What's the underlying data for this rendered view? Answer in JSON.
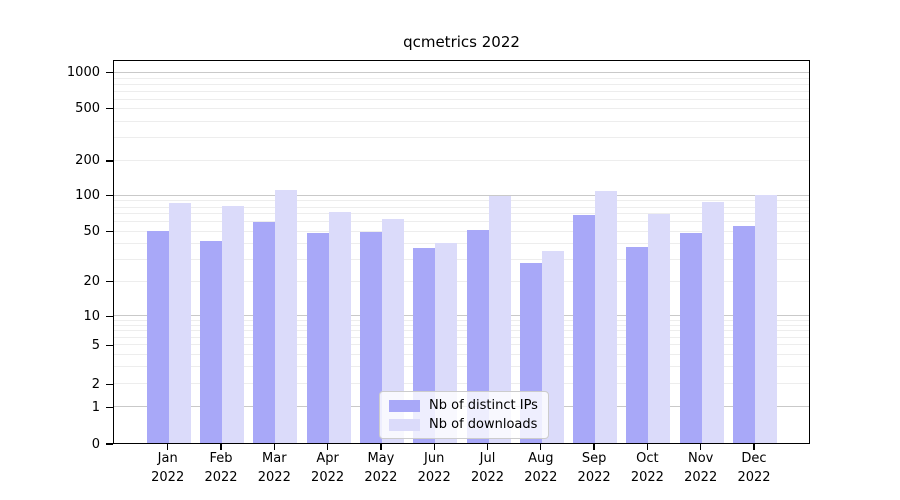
{
  "title": "qcmetrics 2022",
  "chart_data": {
    "type": "bar",
    "title": "qcmetrics 2022",
    "categories": [
      "Jan 2022",
      "Feb 2022",
      "Mar 2022",
      "Apr 2022",
      "May 2022",
      "Jun 2022",
      "Jul 2022",
      "Aug 2022",
      "Sep 2022",
      "Oct 2022",
      "Nov 2022",
      "Dec 2022"
    ],
    "months": [
      "Jan",
      "Feb",
      "Mar",
      "Apr",
      "May",
      "Jun",
      "Jul",
      "Aug",
      "Sep",
      "Oct",
      "Nov",
      "Dec"
    ],
    "year": "2022",
    "series": [
      {
        "name": "Nb of distinct IPs",
        "key": "distinct-ips",
        "color": "#a8a8f8",
        "values": [
          51,
          42,
          60,
          49,
          50,
          37,
          52,
          28,
          69,
          38,
          49,
          56
        ]
      },
      {
        "name": "Nb of downloads",
        "key": "downloads",
        "color": "#dbdbfa",
        "values": [
          87,
          83,
          112,
          74,
          64,
          41,
          100,
          35,
          110,
          70,
          89,
          103
        ]
      }
    ],
    "xlabel": "",
    "ylabel": "",
    "yscale": "symlog (log above 1, linear 0 to 1)",
    "yticks": [
      0,
      1,
      2,
      5,
      10,
      20,
      50,
      100,
      200,
      500,
      1000
    ],
    "ylim": [
      0,
      1260
    ],
    "grid": "horizontal; major at powers of 10, log minor lines",
    "gridlines": {
      "major": [
        1,
        10,
        100,
        1000
      ],
      "minor": [
        2,
        3,
        4,
        5,
        6,
        7,
        8,
        9,
        20,
        30,
        40,
        50,
        60,
        70,
        80,
        90,
        200,
        300,
        400,
        500,
        600,
        700,
        800,
        900
      ]
    },
    "legend_position": "lower center inside plot"
  },
  "colors": {
    "axis": "#000000",
    "major_grid": "#c9c9c9",
    "minor_grid": "#ededed",
    "legend_border": "#cccccc",
    "background": "#ffffff"
  }
}
